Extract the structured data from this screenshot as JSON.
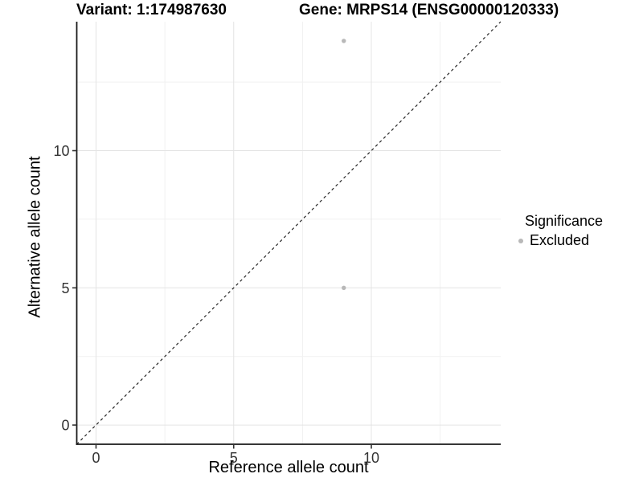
{
  "chart_data": {
    "type": "scatter",
    "title_left": "Variant: 1:174987630",
    "title_right": "Gene: MRPS14 (ENSG00000120333)",
    "xlabel": "Reference allele count",
    "ylabel": "Alternative allele count",
    "xlim": [
      -0.7,
      14.7
    ],
    "ylim": [
      -0.7,
      14.7
    ],
    "x_ticks": [
      0,
      5,
      10
    ],
    "y_ticks": [
      0,
      5,
      10
    ],
    "x_minor_ticks": [
      2.5,
      7.5,
      12.5
    ],
    "y_minor_ticks": [
      2.5,
      7.5,
      12.5
    ],
    "grid": "major+minor",
    "reference_line": {
      "type": "identity y=x",
      "style": "dashed",
      "color": "#262626"
    },
    "series": [
      {
        "name": "Excluded",
        "color": "#b8b8b8",
        "points": [
          [
            9,
            14
          ],
          [
            9,
            5
          ]
        ]
      }
    ],
    "legend": {
      "title": "Significance",
      "position": "right",
      "entries": [
        {
          "label": "Excluded",
          "color": "#b8b8b8"
        }
      ]
    },
    "colors": {
      "background": "#ffffff",
      "grid_major": "#e4e4e4",
      "grid_minor": "#f1f1f1",
      "axis_line": "#1a1a1a",
      "tick_mark": "#333333",
      "tick_label": "#333333",
      "point": "#b8b8b8"
    }
  }
}
